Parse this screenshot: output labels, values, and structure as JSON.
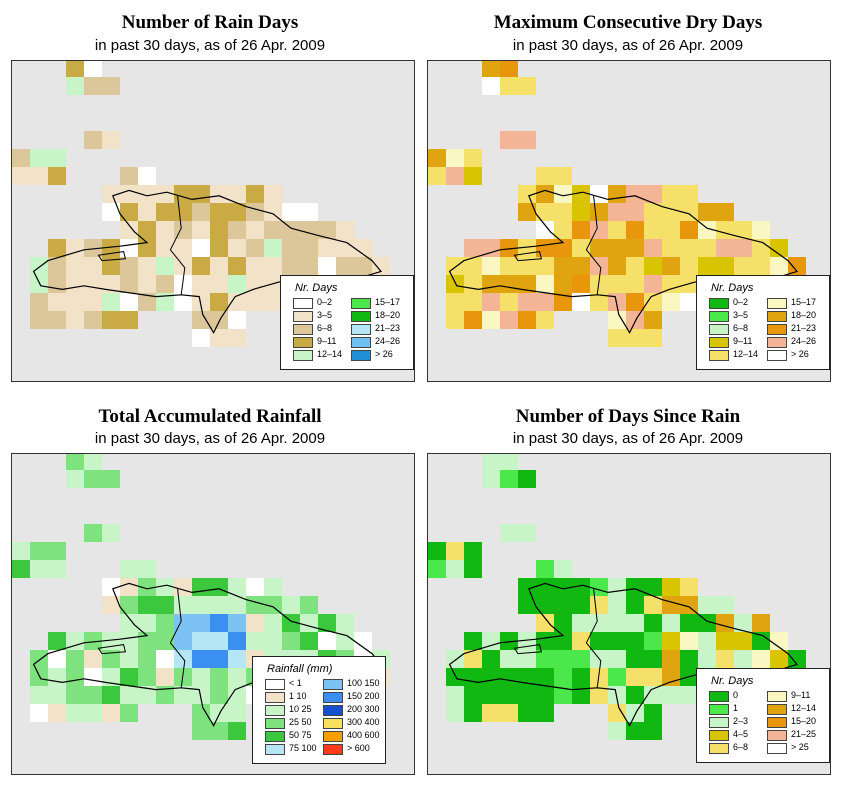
{
  "panels": [
    {
      "id": "rain-days",
      "title": "Number of Rain Days",
      "subtitle": "in past 30 days, as of  26 Apr. 2009",
      "legend": {
        "title": "Nr. Days",
        "items": [
          {
            "label": "0–2",
            "color": "#ffffff"
          },
          {
            "label": "3–5",
            "color": "#f1e2c8"
          },
          {
            "label": "6–8",
            "color": "#dcc79a"
          },
          {
            "label": "9–11",
            "color": "#c9aa45"
          },
          {
            "label": "12–14",
            "color": "#c8f5c8"
          },
          {
            "label": "15–17",
            "color": "#4be84b"
          },
          {
            "label": "18–20",
            "color": "#11b811"
          },
          {
            "label": "21–23",
            "color": "#b4e6f5"
          },
          {
            "label": "24–26",
            "color": "#6ec1f0"
          },
          {
            "label": "> 26",
            "color": "#1f8fd6"
          }
        ]
      }
    },
    {
      "id": "max-dry-days",
      "title": "Maximum Consecutive Dry Days",
      "subtitle": "in past 30 days, as of  26 Apr. 2009",
      "legend": {
        "title": "Nr. Days",
        "items": [
          {
            "label": "0–2",
            "color": "#11b811"
          },
          {
            "label": "3–5",
            "color": "#4be84b"
          },
          {
            "label": "6–8",
            "color": "#c8f5c8"
          },
          {
            "label": "9–11",
            "color": "#d8c400"
          },
          {
            "label": "12–14",
            "color": "#f5e06a"
          },
          {
            "label": "15–17",
            "color": "#fbf7c3"
          },
          {
            "label": "18–20",
            "color": "#e0a410"
          },
          {
            "label": "21–23",
            "color": "#e8960c"
          },
          {
            "label": "24–26",
            "color": "#f3b595"
          },
          {
            "label": "> 26",
            "color": "#ffffff"
          }
        ]
      }
    },
    {
      "id": "total-rainfall",
      "title": "Total Accumulated Rainfall",
      "subtitle": "in past 30 days, as of  26 Apr. 2009",
      "legend": {
        "title": "Rainfall (mm)",
        "items": [
          {
            "label": "< 1",
            "color": "#ffffff"
          },
          {
            "label": "1   10",
            "color": "#f1e2c8"
          },
          {
            "label": "10   25",
            "color": "#c8f5c8"
          },
          {
            "label": "25   50",
            "color": "#7ee27e"
          },
          {
            "label": "50   75",
            "color": "#3cc83c"
          },
          {
            "label": "75  100",
            "color": "#b4e6f5"
          },
          {
            "label": "100  150",
            "color": "#7cc2f2"
          },
          {
            "label": "150  200",
            "color": "#3a8ff0"
          },
          {
            "label": "200  300",
            "color": "#1450d0"
          },
          {
            "label": "300  400",
            "color": "#f6e060"
          },
          {
            "label": "400  600",
            "color": "#f5a000"
          },
          {
            "label": "> 600",
            "color": "#ff3a1a"
          }
        ]
      }
    },
    {
      "id": "days-since-rain",
      "title": "Number of Days Since Rain",
      "subtitle": "in past 30 days, as of  26 Apr. 2009",
      "legend": {
        "title": "Nr. Days",
        "items": [
          {
            "label": "0",
            "color": "#11b811"
          },
          {
            "label": "1",
            "color": "#4be84b"
          },
          {
            "label": "2–3",
            "color": "#c8f5c8"
          },
          {
            "label": "4–5",
            "color": "#d8c400"
          },
          {
            "label": "6–8",
            "color": "#f5e06a"
          },
          {
            "label": "9–11",
            "color": "#fbf7c3"
          },
          {
            "label": "12–14",
            "color": "#e0a410"
          },
          {
            "label": "15–20",
            "color": "#e8960c"
          },
          {
            "label": "21–25",
            "color": "#f3b595"
          },
          {
            "label": "> 25",
            "color": "#ffffff"
          }
        ]
      }
    }
  ]
}
